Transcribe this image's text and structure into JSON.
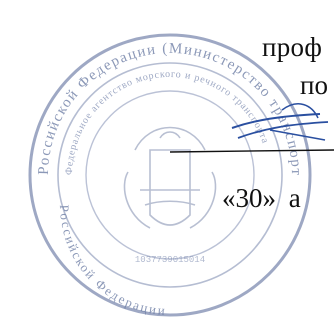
{
  "document": {
    "line_1": "проф",
    "line_2": "по",
    "line_3": "«30» а",
    "seal_outer_text": "Российской Федерации (Министерство транспорта Российской Федерации)",
    "seal_inner_text": "Федеральное агентство морского и речного транспорта",
    "seal_bottom_text": "Российской Федерации",
    "seal_code": "1037739015014"
  },
  "colors": {
    "text": "#111111",
    "seal_ink": "#6f7fa6",
    "signature_ink": "#2a4fa0"
  }
}
